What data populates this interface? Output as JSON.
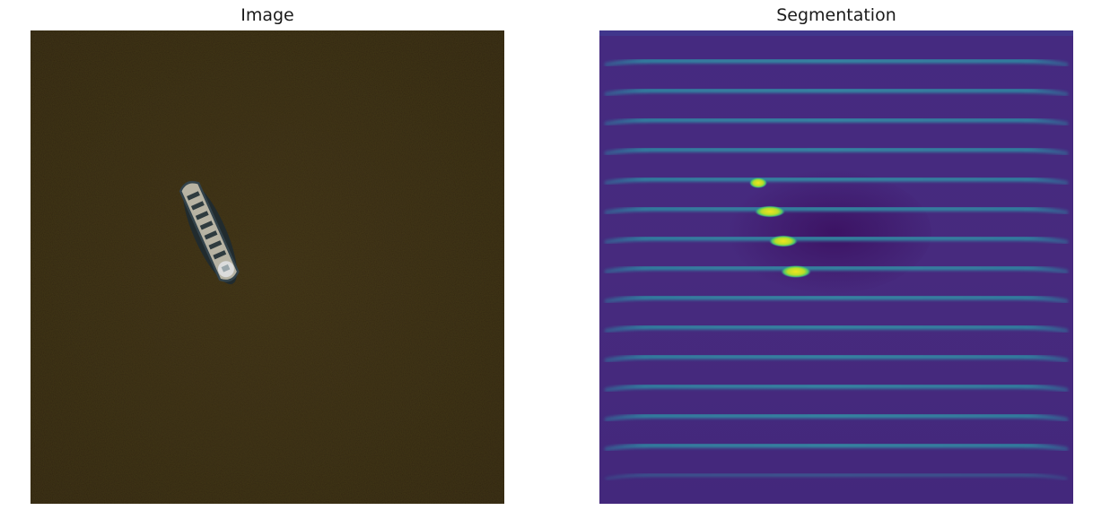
{
  "figure": {
    "left_panel": {
      "title": "Image",
      "content": "satellite image of a ship on dark water",
      "colors": {
        "water": "#3a2d12",
        "water_dark": "#2c220e",
        "hull_edge": "#2a3a44",
        "deck": "#b9b5a6",
        "hatch": "#2e3b3f"
      }
    },
    "right_panel": {
      "title": "Segmentation",
      "colormap": "viridis",
      "colors": {
        "background": "#452a80",
        "background_dark": "#3d1d6e",
        "stripe": "#2f8aa3",
        "stripe_bright": "#40b2a4",
        "hotspot_green": "#3fce6d",
        "hotspot_yellow": "#e6e525"
      },
      "stripe_count": 15,
      "hotspot_count": 4
    }
  }
}
